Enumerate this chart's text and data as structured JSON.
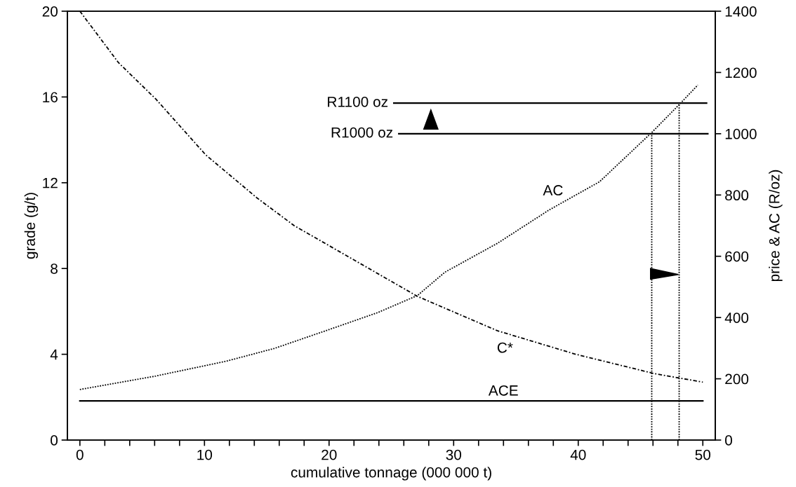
{
  "chart_data": {
    "type": "line",
    "xlabel": "cumulative tonnage (000 000 t)",
    "ylabel": "grade (g/t)",
    "y2label": "price & AC (R/oz)",
    "xlim": [
      -1,
      51
    ],
    "xticks": [
      0,
      {
        "value": 2,
        "label": null
      },
      {
        "value": 4,
        "label": null
      },
      {
        "value": 6,
        "label": null
      },
      {
        "value": 8,
        "label": null
      },
      10,
      {
        "value": 12,
        "label": null
      },
      {
        "value": 14,
        "label": null
      },
      {
        "value": 16,
        "label": null
      },
      {
        "value": 18,
        "label": null
      },
      20,
      {
        "value": 22,
        "label": null
      },
      {
        "value": 24,
        "label": null
      },
      {
        "value": 26,
        "label": null
      },
      {
        "value": 28,
        "label": null
      },
      30,
      {
        "value": 32,
        "label": null
      },
      {
        "value": 34,
        "label": null
      },
      {
        "value": 36,
        "label": null
      },
      {
        "value": 38,
        "label": null
      },
      40,
      {
        "value": 42,
        "label": null
      },
      {
        "value": 44,
        "label": null
      },
      {
        "value": 46,
        "label": null
      },
      {
        "value": 48,
        "label": null
      },
      50
    ],
    "ylim": [
      0,
      20
    ],
    "yticks": [
      0,
      4,
      8,
      12,
      16,
      20
    ],
    "y2lim": [
      0,
      1400
    ],
    "y2ticks": [
      0,
      200,
      400,
      600,
      800,
      1000,
      1200,
      1400
    ],
    "series": [
      {
        "name": "C*",
        "color": "#000000",
        "line_style": "dashed",
        "x": [
          0,
          3.1,
          6.1,
          10.1,
          14.2,
          17.2,
          22.3,
          27.1,
          29.5,
          33.5,
          39.8,
          46.1,
          50.0
        ],
        "values": [
          20,
          17.6,
          15.9,
          13.3,
          11.3,
          10.0,
          8.3,
          6.7,
          6.1,
          5.1,
          4.0,
          3.1,
          2.7
        ]
      },
      {
        "name": "AC",
        "color": "#000000",
        "line_style": "dotted",
        "axis": "y2",
        "x": [
          0,
          6.1,
          11.8,
          15.6,
          19.6,
          23.9,
          27.1,
          29.3,
          33.5,
          37.7,
          41.7,
          45.9,
          48.1,
          49.6
        ],
        "values": [
          165,
          209,
          258,
          299,
          355,
          416,
          472,
          548,
          642,
          752,
          843,
          1004,
          1095,
          1159
        ]
      },
      {
        "name": "ACE",
        "color": "#000000",
        "line_style": "solid",
        "axis": "y2",
        "x": [
          0,
          50
        ],
        "values": [
          128,
          128
        ]
      },
      {
        "name": "R1100 oz",
        "color": "#000000",
        "line_style": "solid",
        "axis": "y2",
        "x": [
          25.2,
          50.3
        ],
        "values": [
          1100,
          1100
        ]
      },
      {
        "name": "R1000 oz",
        "color": "#000000",
        "line_style": "solid",
        "axis": "y2",
        "x": [
          25.6,
          50.4
        ],
        "values": [
          1000,
          1000
        ]
      },
      {
        "color": "#000000",
        "line_style": "dotted",
        "axis": "y2",
        "x": [
          45.9,
          45.9
        ],
        "values": [
          0,
          1000
        ]
      },
      {
        "color": "#000000",
        "line_style": "dotted",
        "axis": "y2",
        "x": [
          48.1,
          48.1
        ],
        "values": [
          0,
          1100
        ]
      }
    ]
  }
}
